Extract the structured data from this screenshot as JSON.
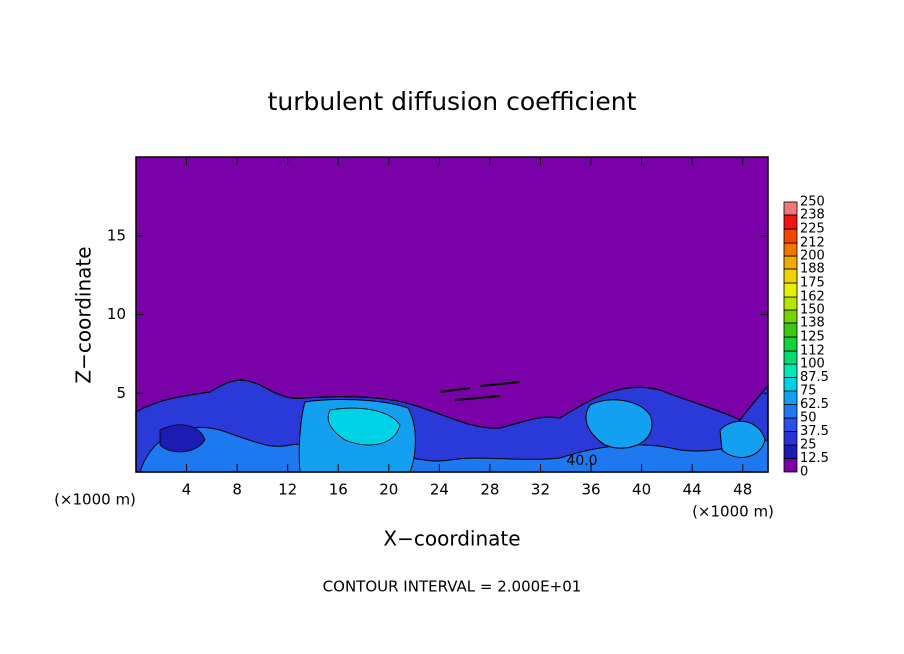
{
  "chart_data": {
    "type": "contour",
    "title": "turbulent diffusion coefficient",
    "xlabel": "X−coordinate",
    "ylabel": "Z−coordinate",
    "x_unit_label": "(×1000 m)",
    "y_unit_label": "(×1000 m)",
    "footnote": "CONTOUR INTERVAL = 2.000E+01",
    "annotations": [
      "40.0"
    ],
    "xlim": [
      0,
      50
    ],
    "xticks": [
      4,
      8,
      12,
      16,
      20,
      24,
      28,
      32,
      36,
      40,
      44,
      48
    ],
    "ylim": [
      0,
      20
    ],
    "yticks": [
      5,
      10,
      15
    ],
    "colorbar": {
      "ticks": [
        0,
        12.5,
        25,
        37.5,
        50,
        62.5,
        75,
        87.5,
        100,
        112,
        125,
        138,
        150,
        162,
        175,
        188,
        200,
        212,
        225,
        238,
        250
      ],
      "colors": [
        "#7a00a8",
        "#1c1cb4",
        "#2832d2",
        "#2f4ee8",
        "#1e78f0",
        "#14a0f0",
        "#00d2e6",
        "#00e6b4",
        "#00dc78",
        "#14d23c",
        "#3cc814",
        "#78d200",
        "#b4e600",
        "#e6f000",
        "#f0d200",
        "#f0aa00",
        "#f07800",
        "#f04600",
        "#f01414",
        "#f07878"
      ]
    }
  }
}
